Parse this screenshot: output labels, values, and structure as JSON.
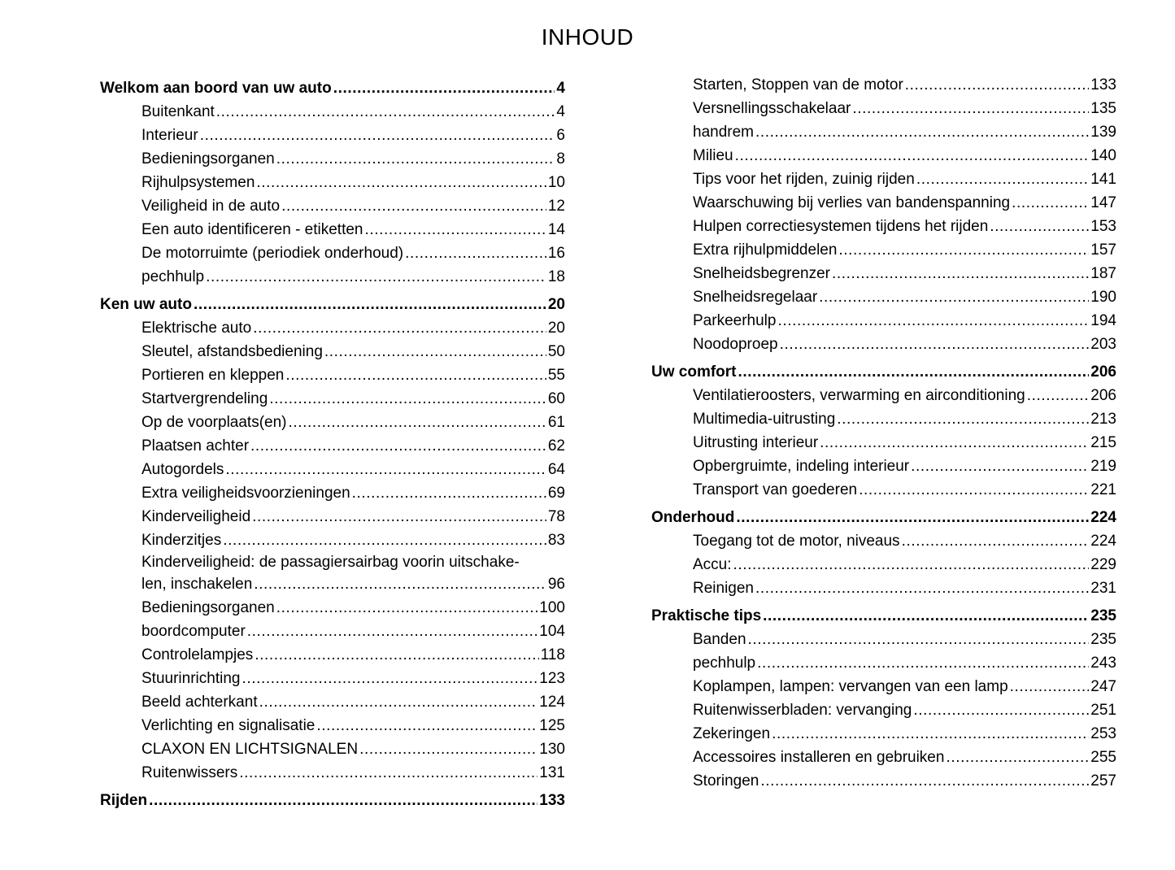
{
  "title": "INHOUD",
  "columns": [
    [
      {
        "level": 1,
        "title": "Welkom aan boord van uw auto",
        "page": "4"
      },
      {
        "level": 2,
        "title": "Buitenkant",
        "page": "4"
      },
      {
        "level": 2,
        "title": "Interieur",
        "page": "6"
      },
      {
        "level": 2,
        "title": "Bedieningsorganen",
        "page": "8"
      },
      {
        "level": 2,
        "title": "Rijhulpsystemen",
        "page": "10"
      },
      {
        "level": 2,
        "title": "Veiligheid in de auto",
        "page": "12"
      },
      {
        "level": 2,
        "title": "Een auto identificeren - etiketten",
        "page": "14"
      },
      {
        "level": 2,
        "title": "De motorruimte (periodiek onderhoud)",
        "page": "16"
      },
      {
        "level": 2,
        "title": "pechhulp",
        "page": "18"
      },
      {
        "level": 1,
        "title": "Ken uw auto",
        "page": "20"
      },
      {
        "level": 2,
        "title": "Elektrische auto",
        "page": "20"
      },
      {
        "level": 2,
        "title": "Sleutel, afstandsbediening",
        "page": "50"
      },
      {
        "level": 2,
        "title": "Portieren en kleppen",
        "page": "55"
      },
      {
        "level": 2,
        "title": "Startvergrendeling",
        "page": "60"
      },
      {
        "level": 2,
        "title": "Op de voorplaats(en)",
        "page": "61"
      },
      {
        "level": 2,
        "title": "Plaatsen achter",
        "page": "62"
      },
      {
        "level": 2,
        "title": "Autogordels",
        "page": "64"
      },
      {
        "level": 2,
        "title": "Extra veiligheidsvoorzieningen",
        "page": "69"
      },
      {
        "level": 2,
        "title": "Kinderveiligheid",
        "page": "78"
      },
      {
        "level": 2,
        "title": "Kinderzitjes",
        "page": "83"
      },
      {
        "level": 2,
        "title_line1": "Kinderveiligheid: de passagiersairbag voorin uitschake-",
        "title": "len, inschakelen",
        "page": "96"
      },
      {
        "level": 2,
        "title": "Bedieningsorganen",
        "page": "100"
      },
      {
        "level": 2,
        "title": "boordcomputer",
        "page": "104"
      },
      {
        "level": 2,
        "title": "Controlelampjes",
        "page": "118"
      },
      {
        "level": 2,
        "title": "Stuurinrichting",
        "page": "123"
      },
      {
        "level": 2,
        "title": "Beeld achterkant",
        "page": "124"
      },
      {
        "level": 2,
        "title": "Verlichting en signalisatie",
        "page": "125"
      },
      {
        "level": 2,
        "title": "CLAXON EN LICHTSIGNALEN",
        "page": "130"
      },
      {
        "level": 2,
        "title": "Ruitenwissers",
        "page": "131"
      },
      {
        "level": 1,
        "title": "Rijden",
        "page": "133"
      }
    ],
    [
      {
        "level": 2,
        "title": "Starten, Stoppen van de motor",
        "page": "133"
      },
      {
        "level": 2,
        "title": "Versnellingsschakelaar",
        "page": "135"
      },
      {
        "level": 2,
        "title": "handrem",
        "page": "139"
      },
      {
        "level": 2,
        "title": "Milieu",
        "page": "140"
      },
      {
        "level": 2,
        "title": "Tips voor het rijden, zuinig rijden",
        "page": "141"
      },
      {
        "level": 2,
        "title": "Waarschuwing bij verlies van bandenspanning",
        "page": "147"
      },
      {
        "level": 2,
        "title": "Hulpen correctiesystemen tijdens het rijden",
        "page": "153"
      },
      {
        "level": 2,
        "title": "Extra rijhulpmiddelen",
        "page": "157"
      },
      {
        "level": 2,
        "title": "Snelheidsbegrenzer",
        "page": "187"
      },
      {
        "level": 2,
        "title": "Snelheidsregelaar",
        "page": "190"
      },
      {
        "level": 2,
        "title": "Parkeerhulp",
        "page": "194"
      },
      {
        "level": 2,
        "title": "Noodoproep",
        "page": "203"
      },
      {
        "level": 1,
        "title": "Uw comfort",
        "page": "206"
      },
      {
        "level": 2,
        "title": "Ventilatieroosters, verwarming en airconditioning",
        "page": "206"
      },
      {
        "level": 2,
        "title": "Multimedia-uitrusting",
        "page": "213"
      },
      {
        "level": 2,
        "title": "Uitrusting interieur",
        "page": "215"
      },
      {
        "level": 2,
        "title": "Opbergruimte, indeling interieur",
        "page": "219"
      },
      {
        "level": 2,
        "title": "Transport van goederen",
        "page": "221"
      },
      {
        "level": 1,
        "title": "Onderhoud",
        "page": "224"
      },
      {
        "level": 2,
        "title": "Toegang tot de motor, niveaus",
        "page": "224"
      },
      {
        "level": 2,
        "title": "Accu:",
        "page": "229"
      },
      {
        "level": 2,
        "title": "Reinigen",
        "page": "231"
      },
      {
        "level": 1,
        "title": "Praktische tips",
        "page": "235"
      },
      {
        "level": 2,
        "title": "Banden",
        "page": "235"
      },
      {
        "level": 2,
        "title": "pechhulp",
        "page": "243"
      },
      {
        "level": 2,
        "title": "Koplampen, lampen: vervangen van een lamp",
        "page": "247"
      },
      {
        "level": 2,
        "title": "Ruitenwisserbladen: vervanging",
        "page": "251"
      },
      {
        "level": 2,
        "title": "Zekeringen",
        "page": "253"
      },
      {
        "level": 2,
        "title": "Accessoires installeren en gebruiken",
        "page": "255"
      },
      {
        "level": 2,
        "title": "Storingen",
        "page": "257"
      }
    ]
  ]
}
